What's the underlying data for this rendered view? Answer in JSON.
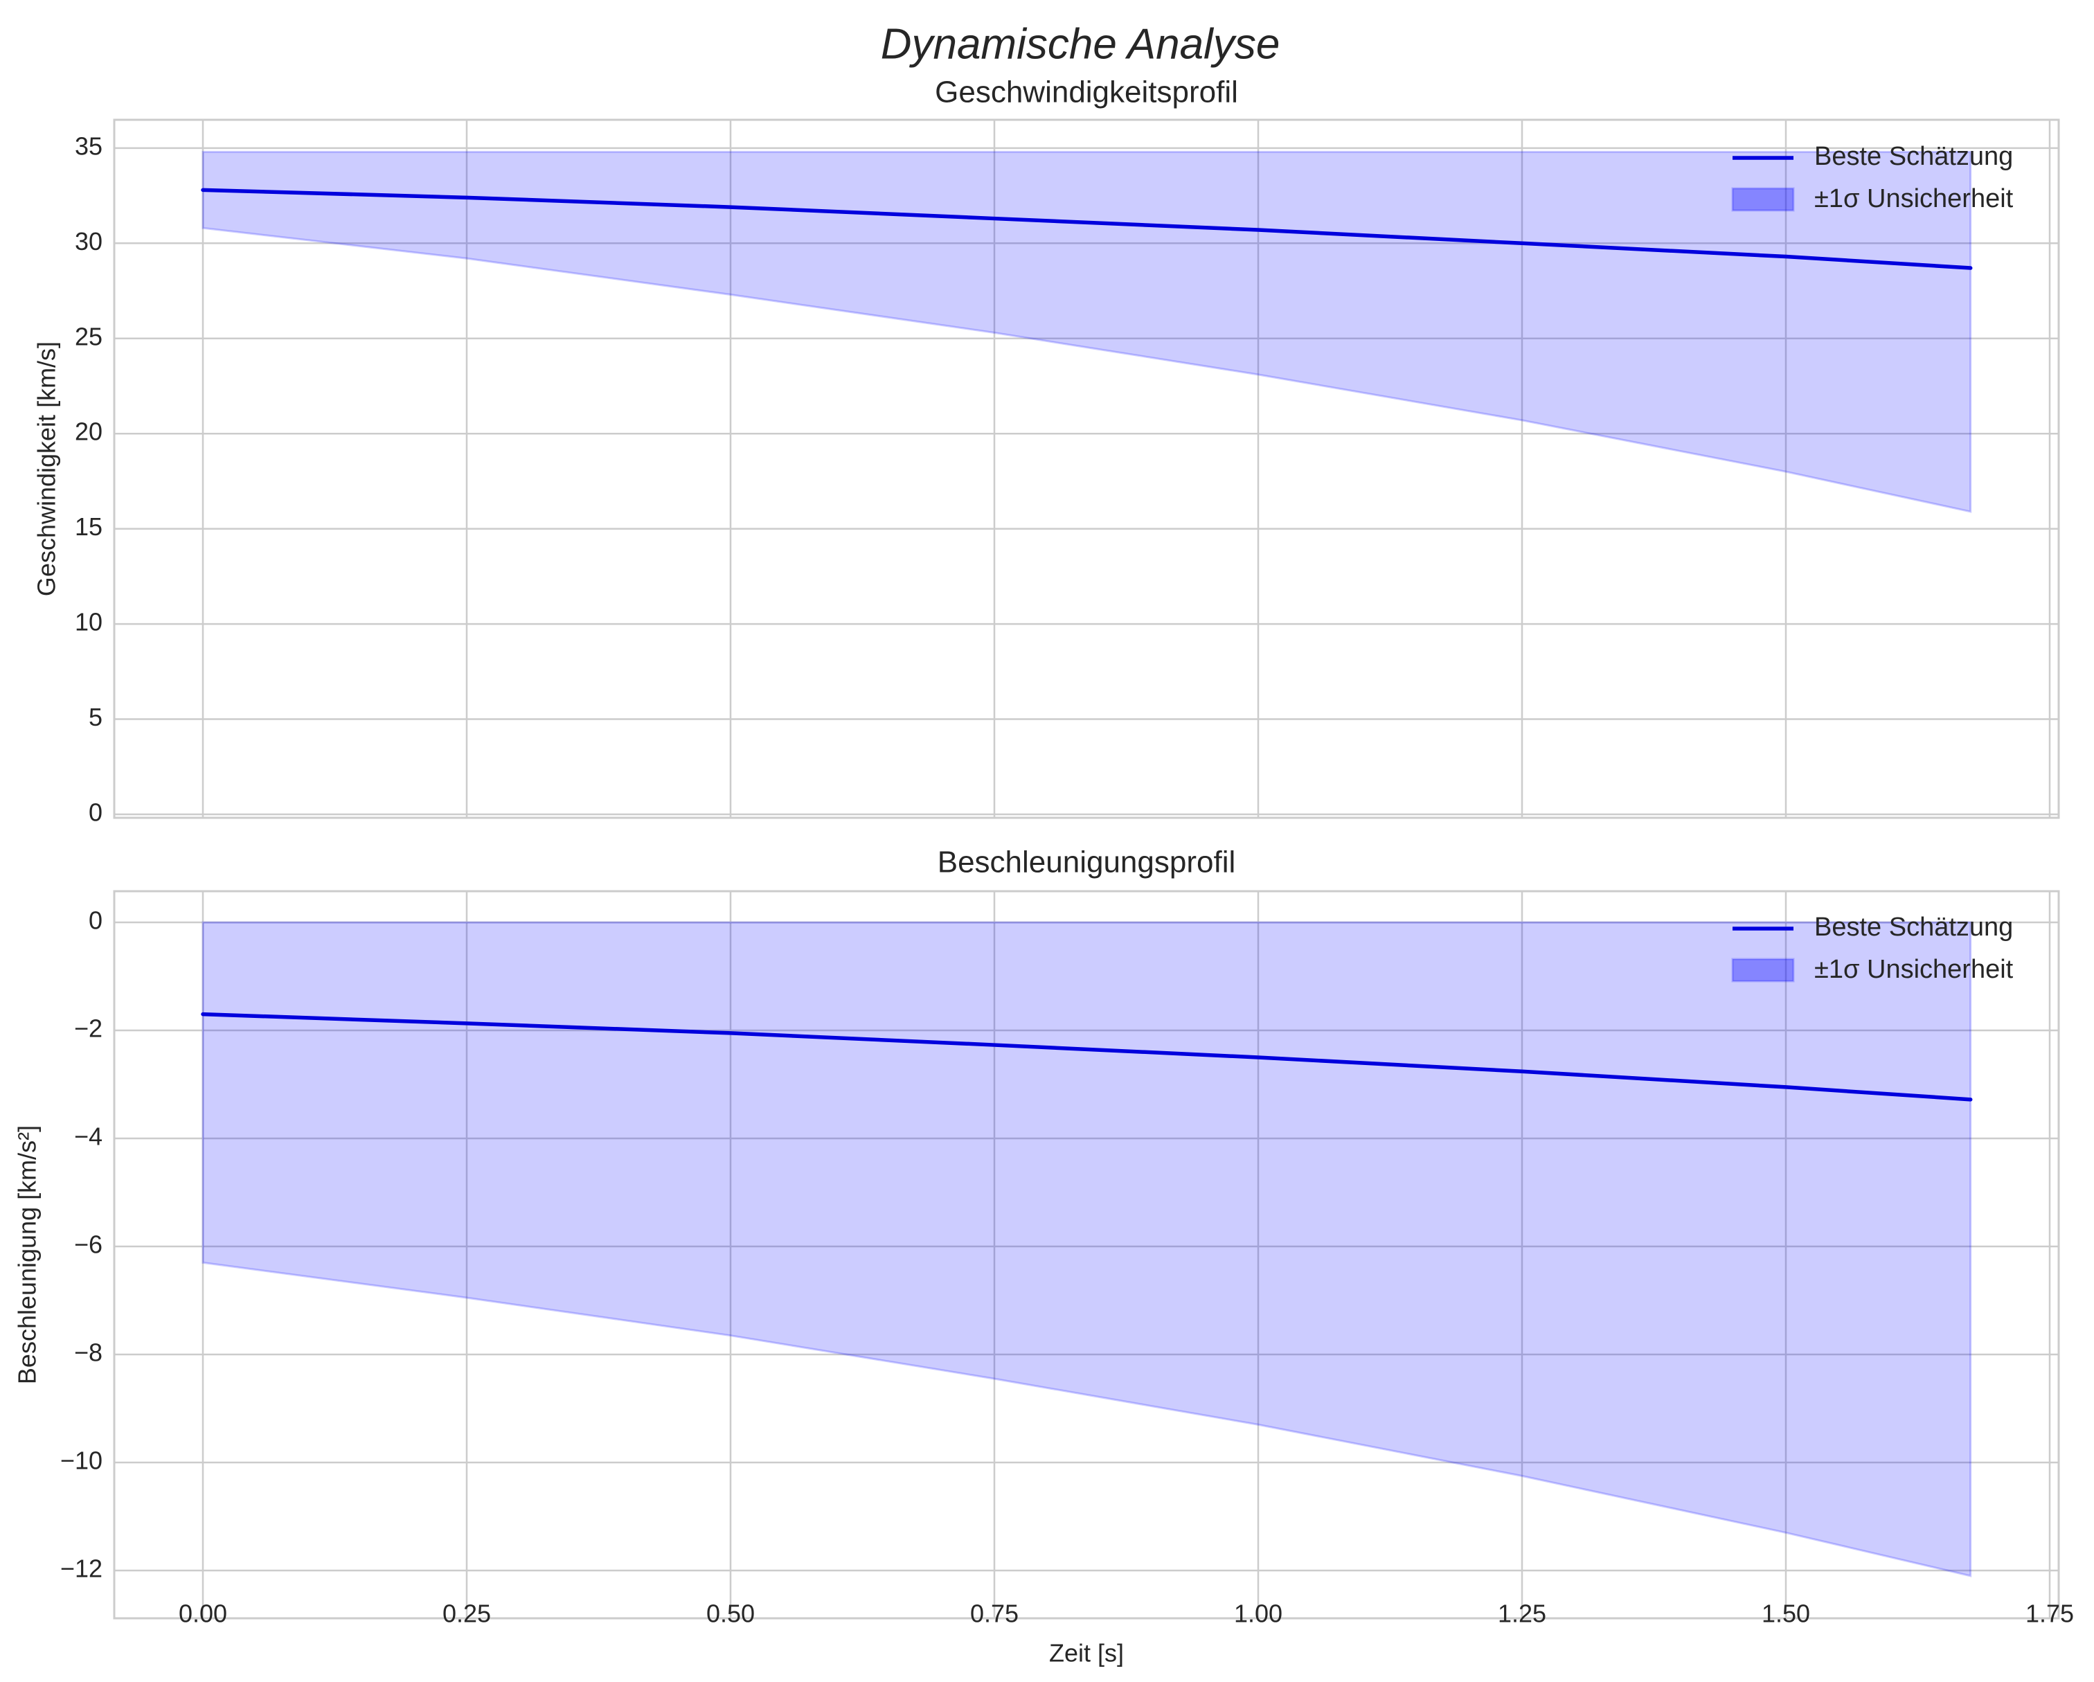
{
  "figure": {
    "title": "Dynamische Analyse",
    "xlabel": "Zeit [s]",
    "colors": {
      "line": "#0000dd",
      "band": "#0000ff",
      "grid": "#cccccc",
      "text": "#262626"
    }
  },
  "chart_data": [
    {
      "type": "line",
      "title": "Geschwindigkeitsprofil",
      "xlabel": "",
      "ylabel": "Geschwindigkeit [km/s]",
      "xlim": [
        -0.08,
        1.76
      ],
      "ylim": [
        0,
        36.5
      ],
      "xticks": [
        "0.00",
        "0.25",
        "0.50",
        "0.75",
        "1.00",
        "1.25",
        "1.50",
        "1.75"
      ],
      "yticks": [
        "0",
        "5",
        "10",
        "15",
        "20",
        "25",
        "30",
        "35"
      ],
      "grid": true,
      "legend": {
        "position": "upper right",
        "entries": [
          "Beste Schätzung",
          "±1σ Unsicherheit"
        ]
      },
      "x": [
        0.0,
        0.25,
        0.5,
        0.75,
        1.0,
        1.25,
        1.5,
        1.675
      ],
      "series": [
        {
          "name": "Beste Schätzung",
          "values": [
            32.8,
            32.4,
            31.9,
            31.3,
            30.7,
            30.0,
            29.3,
            28.7
          ]
        },
        {
          "name": "±1σ Unsicherheit (upper)",
          "values": [
            34.8,
            34.8,
            34.8,
            34.8,
            34.8,
            34.8,
            34.8,
            34.8
          ]
        },
        {
          "name": "±1σ Unsicherheit (lower)",
          "values": [
            30.8,
            29.2,
            27.3,
            25.3,
            23.1,
            20.7,
            18.0,
            15.9
          ]
        }
      ]
    },
    {
      "type": "line",
      "title": "Beschleunigungsprofil",
      "xlabel": "Zeit [s]",
      "ylabel": "Beschleunigung [km/s²]",
      "xlim": [
        -0.08,
        1.76
      ],
      "ylim": [
        -12.7,
        0.6
      ],
      "xticks": [
        "0.00",
        "0.25",
        "0.50",
        "0.75",
        "1.00",
        "1.25",
        "1.50",
        "1.75"
      ],
      "yticks": [
        "0",
        "−2",
        "−4",
        "−6",
        "−8",
        "−10",
        "−12"
      ],
      "grid": true,
      "legend": {
        "position": "upper right",
        "entries": [
          "Beste Schätzung",
          "±1σ Unsicherheit"
        ]
      },
      "x": [
        0.0,
        0.25,
        0.5,
        0.75,
        1.0,
        1.25,
        1.5,
        1.675
      ],
      "series": [
        {
          "name": "Beste Schätzung",
          "values": [
            -1.7,
            -1.87,
            -2.05,
            -2.27,
            -2.5,
            -2.76,
            -3.05,
            -3.28
          ]
        },
        {
          "name": "±1σ Unsicherheit (upper)",
          "values": [
            0,
            0,
            0,
            0,
            0,
            0,
            0,
            0
          ]
        },
        {
          "name": "±1σ Unsicherheit (lower)",
          "values": [
            -6.3,
            -6.95,
            -7.65,
            -8.45,
            -9.3,
            -10.25,
            -11.3,
            -12.1
          ]
        }
      ]
    }
  ]
}
